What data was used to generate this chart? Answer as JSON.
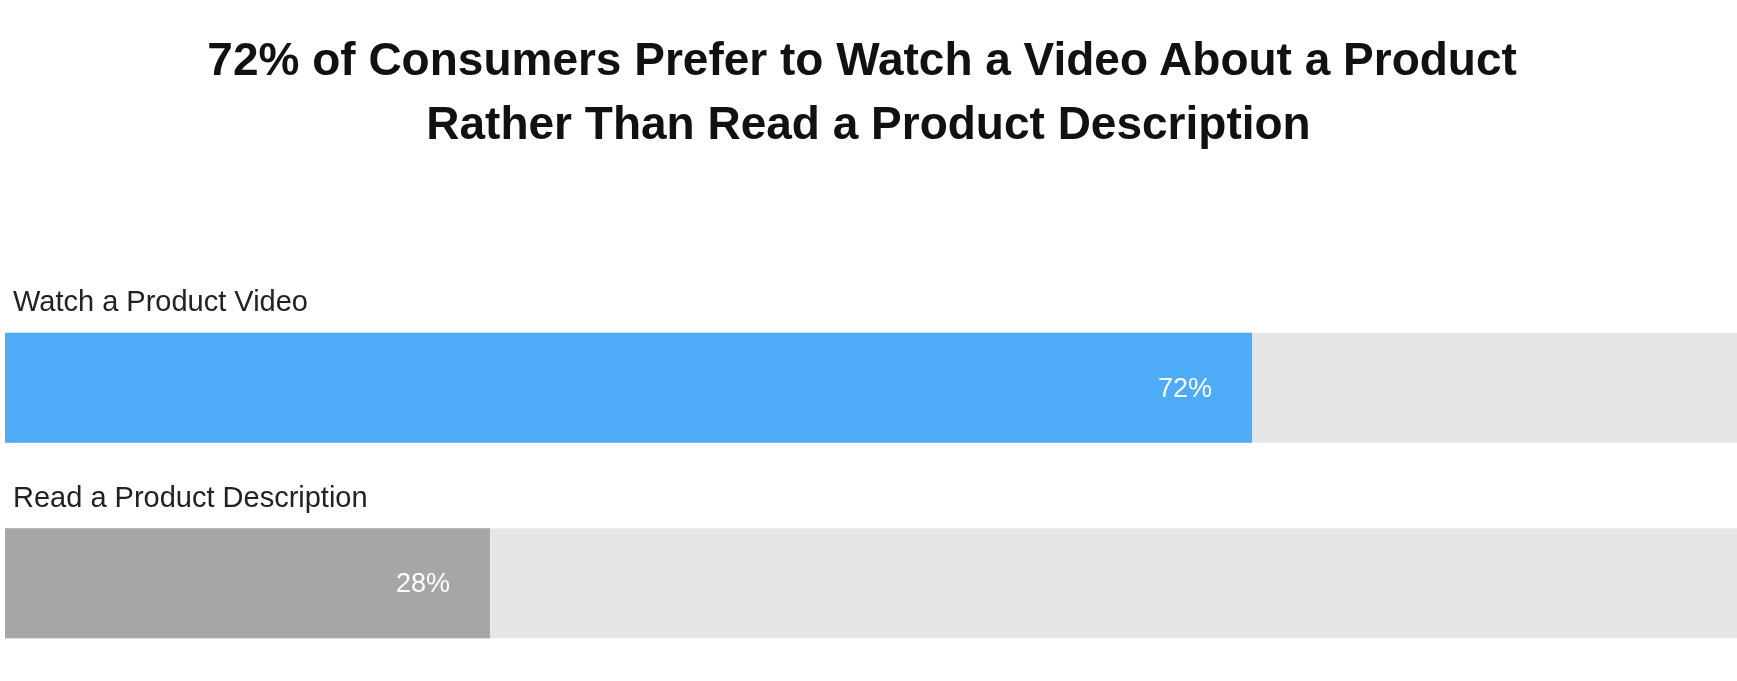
{
  "chart_data": {
    "type": "bar",
    "orientation": "horizontal",
    "title": "72% of Consumers Prefer to Watch a Video About a Product Rather Than Read a Product Description",
    "categories": [
      "Watch a Product Video",
      "Read a Product Description"
    ],
    "values": [
      72,
      28
    ],
    "colors": [
      "#4dabf7",
      "#a6a6a6"
    ],
    "value_labels": [
      "72%",
      "28%"
    ],
    "xlim": [
      0,
      100
    ],
    "tick_labels": "y"
  }
}
